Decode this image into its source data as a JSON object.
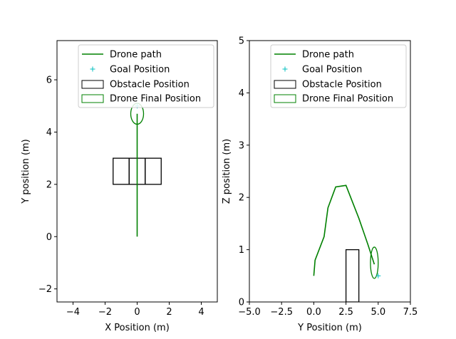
{
  "chart_data": [
    {
      "type": "line",
      "xlabel": "X Position (m)",
      "ylabel": "Y position (m)",
      "xlim": [
        -5,
        5
      ],
      "ylim": [
        -2.5,
        7.5
      ],
      "xticks": [
        -4,
        -2,
        0,
        2,
        4
      ],
      "yticks": [
        -2,
        0,
        2,
        4,
        6
      ],
      "grid": false,
      "legend_position": "top-right",
      "legend": [
        "Drone path",
        "Goal Position",
        "Obstacle Position",
        "Drone Final Position"
      ],
      "drone_path": {
        "x": [
          0,
          0
        ],
        "y": [
          0,
          4.7
        ]
      },
      "goal_position": {
        "x": 0,
        "y": 5.0
      },
      "obstacles": [
        {
          "x_min": -1.5,
          "x_max": -0.5,
          "y_min": 2.0,
          "y_max": 3.0
        },
        {
          "x_min": -0.5,
          "x_max": 0.5,
          "y_min": 2.0,
          "y_max": 3.0
        },
        {
          "x_min": 0.5,
          "x_max": 1.5,
          "y_min": 2.0,
          "y_max": 3.0
        }
      ],
      "drone_final_position": {
        "x": 0,
        "y": 4.7,
        "width": 0.8,
        "height": 0.8
      }
    },
    {
      "type": "line",
      "xlabel": "Y Position (m)",
      "ylabel": "Z position (m)",
      "xlim": [
        -5,
        7.5
      ],
      "ylim": [
        0,
        5
      ],
      "xticks": [
        -5.0,
        -2.5,
        0.0,
        2.5,
        5.0,
        7.5
      ],
      "yticks": [
        0,
        1,
        2,
        3,
        4,
        5
      ],
      "grid": false,
      "legend_position": "top-right",
      "legend": [
        "Drone path",
        "Goal Position",
        "Obstacle Position",
        "Drone Final Position"
      ],
      "drone_path": {
        "x": [
          0,
          0.1,
          0.8,
          1.1,
          1.7,
          2.5,
          3.5,
          4.2,
          4.7
        ],
        "y": [
          0.5,
          0.8,
          1.25,
          1.8,
          2.2,
          2.23,
          1.6,
          1.1,
          0.72
        ]
      },
      "goal_position": {
        "x": 5.0,
        "y": 0.5
      },
      "obstacles": [
        {
          "x_min": 2.5,
          "x_max": 3.5,
          "y_min": 0,
          "y_max": 1.0
        }
      ],
      "drone_final_position": {
        "x": 4.7,
        "y": 0.75,
        "width": 0.6,
        "height": 0.6
      }
    }
  ]
}
